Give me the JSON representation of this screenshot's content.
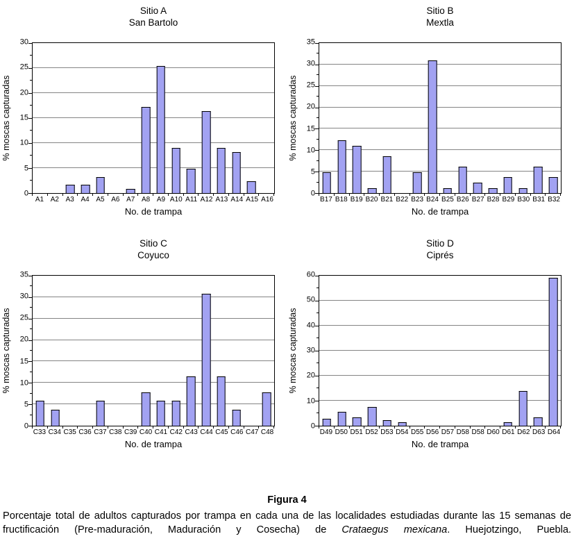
{
  "colors": {
    "bar_fill": "#A2A2F2",
    "bar_border": "#000000",
    "gridline": "#848484",
    "axis": "#000000"
  },
  "caption": {
    "label": "Figura 4",
    "text_before": "Porcentaje total de adultos capturados por trampa en cada una de las localidades estudiadas durante las 15 semanas de fructificación (Pre-maduración, Maduración y Cosecha) de ",
    "species": "Crataegus mexicana",
    "text_after": ". Huejotzingo, Puebla."
  },
  "chart_data": [
    {
      "type": "bar",
      "title": "Sitio A",
      "subtitle": "San Bartolo",
      "xlabel": "No. de trampa",
      "ylabel": "% moscas capturadas",
      "ylim": [
        0,
        30
      ],
      "ytick_step": 5,
      "grid": true,
      "legend": "none",
      "categories": [
        "A1",
        "A2",
        "A3",
        "A4",
        "A5",
        "A6",
        "A7",
        "A8",
        "A9",
        "A10",
        "A11",
        "A12",
        "A13",
        "A14",
        "A15",
        "A16"
      ],
      "values": [
        0,
        0,
        1.6,
        1.6,
        3.2,
        0,
        0.8,
        17.2,
        25.4,
        9.0,
        4.9,
        16.4,
        9.0,
        8.2,
        2.4,
        0
      ]
    },
    {
      "type": "bar",
      "title": "Sitio B",
      "subtitle": "Mextla",
      "xlabel": "No. de trampa",
      "ylabel": "% moscas capturadas",
      "ylim": [
        0,
        35
      ],
      "ytick_step": 5,
      "grid": true,
      "legend": "none",
      "categories": [
        "B17",
        "B18",
        "B19",
        "B20",
        "B21",
        "B22",
        "B23",
        "B24",
        "B25",
        "B26",
        "B27",
        "B28",
        "B29",
        "B30",
        "B31",
        "B32"
      ],
      "values": [
        4.9,
        12.3,
        11.1,
        1.2,
        8.6,
        0,
        4.9,
        30.9,
        1.2,
        6.2,
        2.5,
        1.2,
        3.7,
        1.2,
        6.2,
        3.7
      ]
    },
    {
      "type": "bar",
      "title": "Sitio C",
      "subtitle": "Coyuco",
      "xlabel": "No. de trampa",
      "ylabel": "% moscas capturadas",
      "ylim": [
        0,
        35
      ],
      "ytick_step": 5,
      "grid": true,
      "legend": "none",
      "categories": [
        "C33",
        "C34",
        "C35",
        "C36",
        "C37",
        "C38",
        "C39",
        "C40",
        "C41",
        "C42",
        "C43",
        "C44",
        "C45",
        "C46",
        "C47",
        "C48"
      ],
      "values": [
        5.8,
        3.8,
        0,
        0,
        5.8,
        0,
        0,
        7.7,
        5.8,
        5.8,
        11.5,
        30.8,
        11.5,
        3.8,
        0,
        7.7
      ]
    },
    {
      "type": "bar",
      "title": "Sitio D",
      "subtitle": "Ciprés",
      "xlabel": "No. de trampa",
      "ylabel": "% moscas capturadas",
      "ylim": [
        0,
        60
      ],
      "ytick_step": 10,
      "grid": true,
      "legend": "none",
      "categories": [
        "D49",
        "D50",
        "D51",
        "D52",
        "D53",
        "D54",
        "D55",
        "D56",
        "D57",
        "D58",
        "D58",
        "D60",
        "D61",
        "D62",
        "D63",
        "D64"
      ],
      "values": [
        2.8,
        5.6,
        3.4,
        7.6,
        2.1,
        1.4,
        0,
        0,
        0,
        0,
        0,
        0,
        1.4,
        13.9,
        3.4,
        59.3
      ]
    }
  ]
}
